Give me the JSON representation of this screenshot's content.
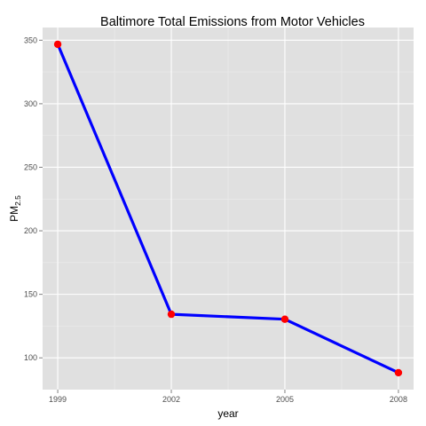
{
  "chart_data": {
    "type": "line",
    "title": "Baltimore Total Emissions from Motor Vehicles",
    "xlabel": "year",
    "ylabel": {
      "main": "PM",
      "sub": "2.5"
    },
    "x": [
      1999,
      2002,
      2005,
      2008
    ],
    "series": [
      {
        "values": [
          346.8,
          134.3,
          130.4,
          88.3
        ]
      }
    ],
    "xlim": [
      1998.6,
      2008.4
    ],
    "ylim": [
      75,
      360
    ],
    "x_ticks": [
      1999,
      2002,
      2005,
      2008
    ],
    "y_ticks": [
      100,
      150,
      200,
      250,
      300,
      350
    ],
    "grid": true,
    "legend": "none",
    "colors": {
      "panel_background": "#e0e0e0",
      "grid_major": "#ffffff",
      "grid_minor": "#ebebeb",
      "line": "#0000ff",
      "points": "#ff0000",
      "tick": "#7f7f7f",
      "tick_label": "#4d4d4d"
    }
  }
}
